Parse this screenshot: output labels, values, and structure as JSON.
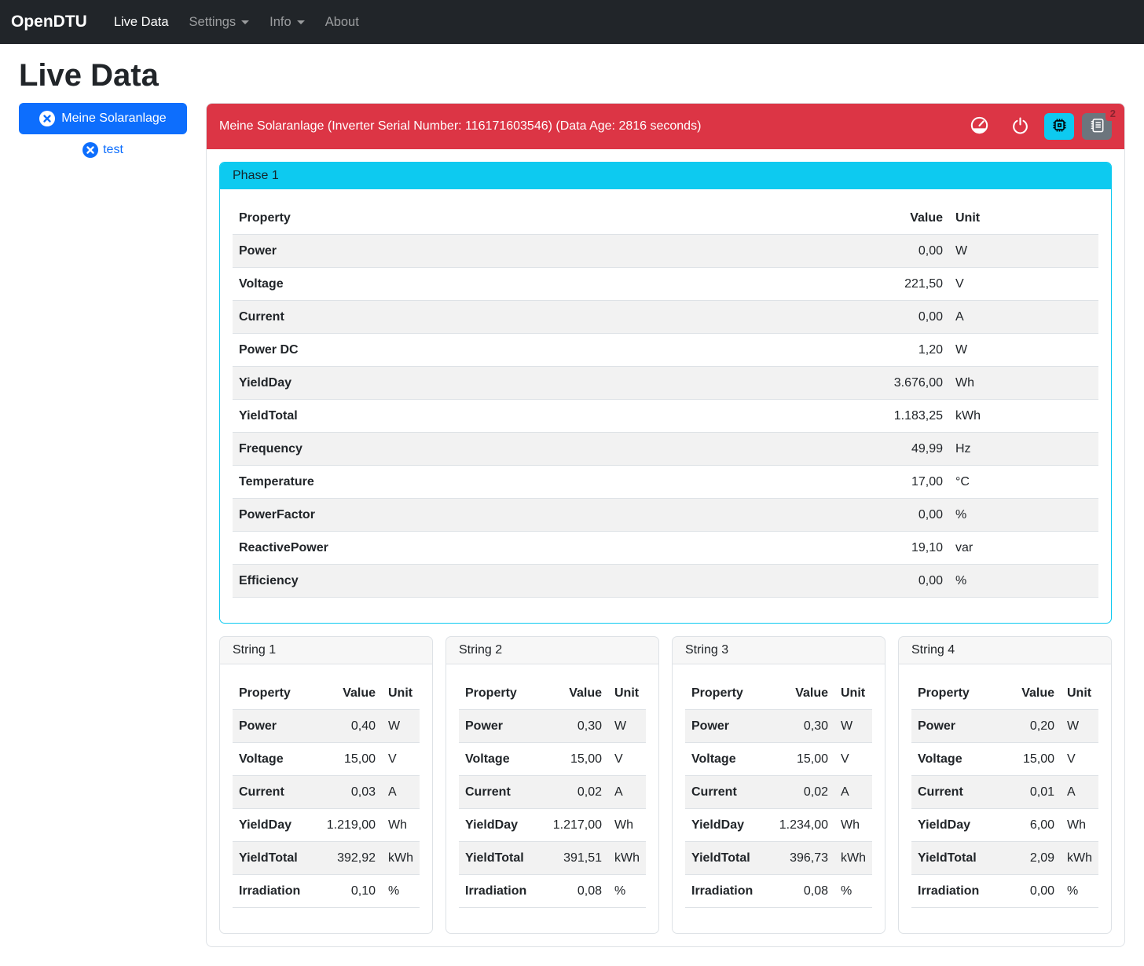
{
  "navbar": {
    "brand": "OpenDTU",
    "items": [
      {
        "label": "Live Data",
        "active": true,
        "dropdown": false
      },
      {
        "label": "Settings",
        "active": false,
        "dropdown": true
      },
      {
        "label": "Info",
        "active": false,
        "dropdown": true
      },
      {
        "label": "About",
        "active": false,
        "dropdown": false
      }
    ]
  },
  "page": {
    "title": "Live Data"
  },
  "sidebar": {
    "inverter_button_label": "Meine Solaranlage",
    "secondary_link_label": "test"
  },
  "colors": {
    "primary": "#0d6efd",
    "danger": "#dc3545",
    "info": "#0dcaf0",
    "secondary": "#6c757d"
  },
  "inverter_card": {
    "header_title": "Meine Solaranlage (Inverter Serial Number: 116171603546) (Data Age: 2816 seconds)",
    "icons": [
      "gauge-icon",
      "power-icon",
      "cpu-icon",
      "events-list-icon"
    ],
    "events_badge_count": "2"
  },
  "columns": {
    "property": "Property",
    "value": "Value",
    "unit": "Unit"
  },
  "phase_card": {
    "title": "Phase 1",
    "rows": [
      {
        "property": "Power",
        "value": "0,00",
        "unit": "W"
      },
      {
        "property": "Voltage",
        "value": "221,50",
        "unit": "V"
      },
      {
        "property": "Current",
        "value": "0,00",
        "unit": "A"
      },
      {
        "property": "Power DC",
        "value": "1,20",
        "unit": "W"
      },
      {
        "property": "YieldDay",
        "value": "3.676,00",
        "unit": "Wh"
      },
      {
        "property": "YieldTotal",
        "value": "1.183,25",
        "unit": "kWh"
      },
      {
        "property": "Frequency",
        "value": "49,99",
        "unit": "Hz"
      },
      {
        "property": "Temperature",
        "value": "17,00",
        "unit": "°C"
      },
      {
        "property": "PowerFactor",
        "value": "0,00",
        "unit": "%"
      },
      {
        "property": "ReactivePower",
        "value": "19,10",
        "unit": "var"
      },
      {
        "property": "Efficiency",
        "value": "0,00",
        "unit": "%"
      }
    ]
  },
  "string_cards": [
    {
      "title": "String 1",
      "rows": [
        {
          "property": "Power",
          "value": "0,40",
          "unit": "W"
        },
        {
          "property": "Voltage",
          "value": "15,00",
          "unit": "V"
        },
        {
          "property": "Current",
          "value": "0,03",
          "unit": "A"
        },
        {
          "property": "YieldDay",
          "value": "1.219,00",
          "unit": "Wh"
        },
        {
          "property": "YieldTotal",
          "value": "392,92",
          "unit": "kWh"
        },
        {
          "property": "Irradiation",
          "value": "0,10",
          "unit": "%"
        }
      ]
    },
    {
      "title": "String 2",
      "rows": [
        {
          "property": "Power",
          "value": "0,30",
          "unit": "W"
        },
        {
          "property": "Voltage",
          "value": "15,00",
          "unit": "V"
        },
        {
          "property": "Current",
          "value": "0,02",
          "unit": "A"
        },
        {
          "property": "YieldDay",
          "value": "1.217,00",
          "unit": "Wh"
        },
        {
          "property": "YieldTotal",
          "value": "391,51",
          "unit": "kWh"
        },
        {
          "property": "Irradiation",
          "value": "0,08",
          "unit": "%"
        }
      ]
    },
    {
      "title": "String 3",
      "rows": [
        {
          "property": "Power",
          "value": "0,30",
          "unit": "W"
        },
        {
          "property": "Voltage",
          "value": "15,00",
          "unit": "V"
        },
        {
          "property": "Current",
          "value": "0,02",
          "unit": "A"
        },
        {
          "property": "YieldDay",
          "value": "1.234,00",
          "unit": "Wh"
        },
        {
          "property": "YieldTotal",
          "value": "396,73",
          "unit": "kWh"
        },
        {
          "property": "Irradiation",
          "value": "0,08",
          "unit": "%"
        }
      ]
    },
    {
      "title": "String 4",
      "rows": [
        {
          "property": "Power",
          "value": "0,20",
          "unit": "W"
        },
        {
          "property": "Voltage",
          "value": "15,00",
          "unit": "V"
        },
        {
          "property": "Current",
          "value": "0,01",
          "unit": "A"
        },
        {
          "property": "YieldDay",
          "value": "6,00",
          "unit": "Wh"
        },
        {
          "property": "YieldTotal",
          "value": "2,09",
          "unit": "kWh"
        },
        {
          "property": "Irradiation",
          "value": "0,00",
          "unit": "%"
        }
      ]
    }
  ]
}
